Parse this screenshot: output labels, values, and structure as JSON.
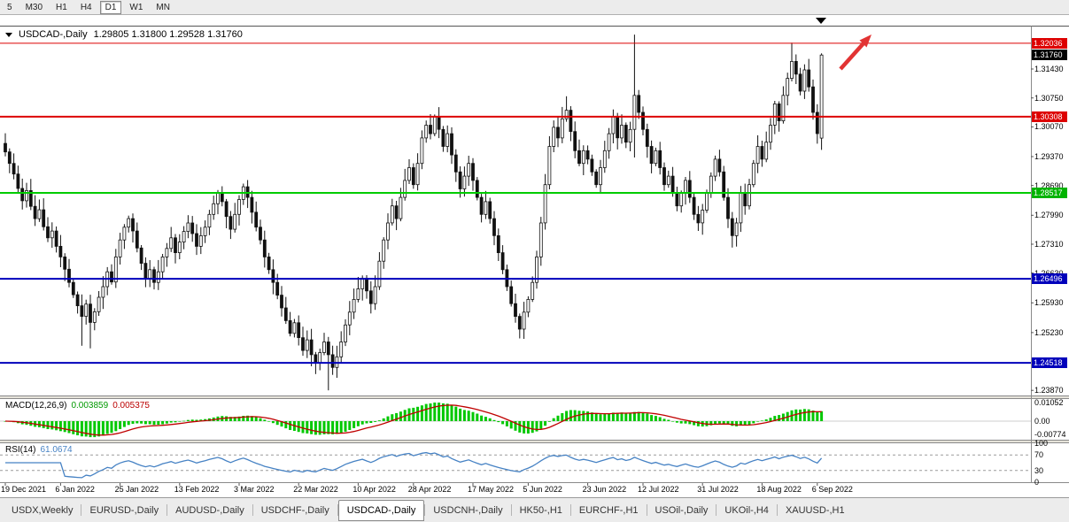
{
  "toolbar": {
    "timeframes": [
      {
        "label": "5",
        "active": false
      },
      {
        "label": "M30",
        "active": false
      },
      {
        "label": "H1",
        "active": false
      },
      {
        "label": "H4",
        "active": false
      },
      {
        "label": "D1",
        "active": true
      },
      {
        "label": "W1",
        "active": false
      },
      {
        "label": "MN",
        "active": false
      }
    ]
  },
  "chart_header": {
    "symbol_title": "USDCAD-,Daily",
    "ohlc": "1.29805 1.31800 1.29528 1.31760"
  },
  "indicators": {
    "macd": {
      "name": "MACD(12,26,9)",
      "value_main": "0.003859",
      "value_signal": "0.005375",
      "axis": [
        {
          "text": "0.01052",
          "value": 0.01052
        },
        {
          "text": "0.00",
          "value": 0
        },
        {
          "text": "-0.00774",
          "value": -0.00774
        }
      ]
    },
    "rsi": {
      "name": "RSI(14)",
      "value": "61.0674",
      "axis": [
        {
          "text": "100",
          "value": 100
        },
        {
          "text": "70",
          "value": 70
        },
        {
          "text": "30",
          "value": 30
        },
        {
          "text": "0",
          "value": 0
        }
      ]
    }
  },
  "tabs": [
    {
      "label": "USDX,Weekly",
      "active": false
    },
    {
      "label": "EURUSD-,Daily",
      "active": false
    },
    {
      "label": "AUDUSD-,Daily",
      "active": false
    },
    {
      "label": "USDCHF-,Daily",
      "active": false
    },
    {
      "label": "USDCAD-,Daily",
      "active": true
    },
    {
      "label": "USDCNH-,Daily",
      "active": false
    },
    {
      "label": "HK50-,H1",
      "active": false
    },
    {
      "label": "EURCHF-,H1",
      "active": false
    },
    {
      "label": "USOil-,Daily",
      "active": false
    },
    {
      "label": "UKOil-,H4",
      "active": false
    },
    {
      "label": "XAUUSD-,H1",
      "active": false
    }
  ],
  "chart_data": {
    "type": "candlestick",
    "symbol": "USDCAD-",
    "period": "Daily",
    "title": "USDCAD-,Daily",
    "price_min": 1.2375,
    "price_max": 1.3243,
    "last_candle": {
      "open": 1.29805,
      "high": 1.318,
      "low": 1.29528,
      "close": 1.3176
    },
    "current_price_label": {
      "text": "1.31760",
      "bg": "#000000",
      "fg": "#ffffff"
    },
    "closes": [
      1.2948,
      1.2921,
      1.2896,
      1.2862,
      1.2833,
      1.2857,
      1.282,
      1.2791,
      1.2812,
      1.2772,
      1.2746,
      1.2762,
      1.2726,
      1.2701,
      1.2672,
      1.2641,
      1.2612,
      1.2586,
      1.2561,
      1.259,
      1.2547,
      1.2572,
      1.2606,
      1.2631,
      1.2666,
      1.2642,
      1.2701,
      1.2741,
      1.2771,
      1.2791,
      1.2762,
      1.2722,
      1.2686,
      1.2651,
      1.2671,
      1.2641,
      1.2666,
      1.2701,
      1.2721,
      1.2746,
      1.2711,
      1.2736,
      1.2761,
      1.2781,
      1.2756,
      1.2726,
      1.2751,
      1.2771,
      1.2801,
      1.2826,
      1.2851,
      1.2831,
      1.2796,
      1.2766,
      1.2801,
      1.2836,
      1.2866,
      1.2841,
      1.2806,
      1.2771,
      1.2741,
      1.2701,
      1.2671,
      1.2641,
      1.2611,
      1.2581,
      1.2551,
      1.2521,
      1.2546,
      1.2511,
      1.2481,
      1.2506,
      1.2471,
      1.2451,
      1.2476,
      1.2501,
      1.2471,
      1.2441,
      1.2466,
      1.2501,
      1.2541,
      1.2571,
      1.2601,
      1.2626,
      1.2651,
      1.2621,
      1.2591,
      1.2631,
      1.2691,
      1.2741,
      1.2781,
      1.2821,
      1.2791,
      1.2841,
      1.2881,
      1.2911,
      1.2871,
      1.2921,
      1.2981,
      1.3011,
      1.2991,
      1.3031,
      1.3001,
      1.2961,
      1.2991,
      1.2941,
      1.2901,
      1.2861,
      1.2891,
      1.2921,
      1.2881,
      1.2841,
      1.2801,
      1.2831,
      1.2791,
      1.2751,
      1.2711,
      1.2671,
      1.2631,
      1.2591,
      1.2561,
      1.2531,
      1.2571,
      1.2601,
      1.2641,
      1.2701,
      1.2781,
      1.2871,
      1.2961,
      1.3006,
      1.2981,
      1.3026,
      1.3046,
      1.2996,
      1.2951,
      1.2921,
      1.2951,
      1.2931,
      1.2901,
      1.2871,
      1.2911,
      1.2951,
      1.2991,
      1.3031,
      1.2981,
      1.3011,
      1.2971,
      1.3001,
      1.3081,
      1.3041,
      1.3001,
      1.2961,
      1.2921,
      1.2951,
      1.2911,
      1.2871,
      1.2891,
      1.2851,
      1.2821,
      1.2851,
      1.2881,
      1.2841,
      1.2801,
      1.2781,
      1.2811,
      1.2851,
      1.2891,
      1.2931,
      1.2901,
      1.2841,
      1.2791,
      1.2751,
      1.2781,
      1.2851,
      1.2821,
      1.2871,
      1.2921,
      1.2961,
      1.2931,
      1.2971,
      1.3011,
      1.3061,
      1.3021,
      1.3081,
      1.3121,
      1.3161,
      1.3131,
      1.3091,
      1.3141,
      1.3101,
      1.3041,
      1.2991,
      1.3176
    ],
    "wick_overrides": {
      "18": [
        null,
        1.2492
      ],
      "20": [
        null,
        1.2486
      ],
      "76": [
        null,
        1.2387
      ],
      "101": [
        1.3036,
        null
      ],
      "132": [
        1.3079,
        null
      ],
      "143": [
        1.3048,
        null
      ],
      "148": [
        1.3224,
        1.2935
      ],
      "185": [
        1.3205,
        null
      ]
    },
    "levels": [
      {
        "price": 1.32036,
        "color": "#dd0000",
        "width": 1,
        "label": "1.32036",
        "label_bg": "#dd0000"
      },
      {
        "price": 1.30308,
        "color": "#dd0000",
        "width": 2,
        "label": "1.30308",
        "label_bg": "#dd0000"
      },
      {
        "price": 1.28517,
        "color": "#00cc00",
        "width": 2,
        "label": "1.28517",
        "label_bg": "#00b300"
      },
      {
        "price": 1.26496,
        "color": "#0000bb",
        "width": 2,
        "label": "1.26496",
        "label_bg": "#0000bb"
      },
      {
        "price": 1.24518,
        "color": "#0000bb",
        "width": 2,
        "label": "1.24518",
        "label_bg": "#0000bb"
      }
    ],
    "y_ticks": [
      "1.31430",
      "1.30750",
      "1.30070",
      "1.29370",
      "1.28690",
      "1.27990",
      "1.27310",
      "1.26630",
      "1.25930",
      "1.25230",
      "1.23870"
    ],
    "x_labels": [
      {
        "text": "19 Dec 2021",
        "index": 0
      },
      {
        "text": "6 Jan 2022",
        "index": 13
      },
      {
        "text": "25 Jan 2022",
        "index": 27
      },
      {
        "text": "13 Feb 2022",
        "index": 41
      },
      {
        "text": "3 Mar 2022",
        "index": 55
      },
      {
        "text": "22 Mar 2022",
        "index": 69
      },
      {
        "text": "10 Apr 2022",
        "index": 83
      },
      {
        "text": "28 Apr 2022",
        "index": 96
      },
      {
        "text": "17 May 2022",
        "index": 110
      },
      {
        "text": "5 Jun 2022",
        "index": 123
      },
      {
        "text": "23 Jun 2022",
        "index": 137
      },
      {
        "text": "12 Jul 2022",
        "index": 150
      },
      {
        "text": "31 Jul 2022",
        "index": 164
      },
      {
        "text": "18 Aug 2022",
        "index": 178
      },
      {
        "text": "6 Sep 2022",
        "index": 191
      }
    ],
    "macd_params": {
      "fast": 12,
      "slow": 26,
      "signal": 9,
      "hist_color": "#00c800",
      "signal_color": "#c00000",
      "range": [
        -0.0105,
        0.0125
      ]
    },
    "rsi_params": {
      "period": 14,
      "color": "#4682c4",
      "levels": [
        70,
        30
      ],
      "range": [
        0,
        100
      ]
    },
    "annotations": {
      "up_arrow": {
        "color": "#e23333"
      },
      "top_marker": {
        "shape": "triangle-down",
        "color": "#000000"
      }
    },
    "candle_colors": {
      "up_fill": "#ffffff",
      "down_fill": "#111111",
      "outline": "#111111"
    }
  }
}
